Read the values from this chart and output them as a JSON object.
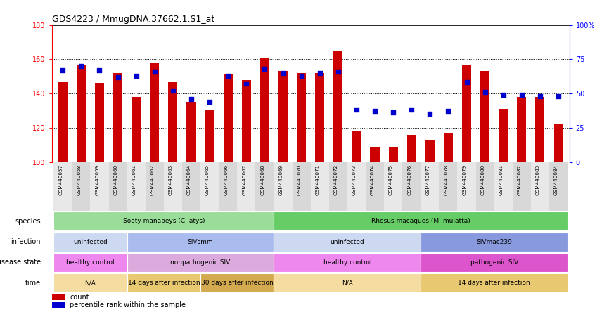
{
  "title": "GDS4223 / MmugDNA.37662.1.S1_at",
  "samples": [
    "GSM440057",
    "GSM440058",
    "GSM440059",
    "GSM440060",
    "GSM440061",
    "GSM440062",
    "GSM440063",
    "GSM440064",
    "GSM440065",
    "GSM440066",
    "GSM440067",
    "GSM440068",
    "GSM440069",
    "GSM440070",
    "GSM440071",
    "GSM440072",
    "GSM440073",
    "GSM440074",
    "GSM440075",
    "GSM440076",
    "GSM440077",
    "GSM440078",
    "GSM440079",
    "GSM440080",
    "GSM440081",
    "GSM440082",
    "GSM440083",
    "GSM440084"
  ],
  "counts": [
    147,
    157,
    146,
    152,
    138,
    158,
    147,
    135,
    130,
    151,
    148,
    161,
    153,
    152,
    152,
    165,
    118,
    109,
    109,
    116,
    113,
    117,
    157,
    153,
    131,
    138,
    138,
    122
  ],
  "percentiles": [
    67,
    70,
    67,
    62,
    63,
    66,
    52,
    46,
    44,
    63,
    57,
    68,
    65,
    63,
    65,
    66,
    38,
    37,
    36,
    38,
    35,
    37,
    58,
    51,
    49,
    49,
    48,
    48
  ],
  "bar_color": "#cc0000",
  "dot_color": "#0000cc",
  "ymin": 100,
  "ymax": 180,
  "yticks_left": [
    100,
    120,
    140,
    160,
    180
  ],
  "yticks_right": [
    0,
    25,
    50,
    75,
    100
  ],
  "grid_lines": [
    120,
    140,
    160
  ],
  "species_blocks": [
    {
      "label": "Sooty manabeys (C. atys)",
      "start": 0,
      "end": 12,
      "color": "#99dd99"
    },
    {
      "label": "Rhesus macaques (M. mulatta)",
      "start": 12,
      "end": 28,
      "color": "#66cc66"
    }
  ],
  "infection_blocks": [
    {
      "label": "uninfected",
      "start": 0,
      "end": 4,
      "color": "#ccd9f0"
    },
    {
      "label": "SIVsmm",
      "start": 4,
      "end": 12,
      "color": "#aabbee"
    },
    {
      "label": "uninfected",
      "start": 12,
      "end": 20,
      "color": "#ccd9f0"
    },
    {
      "label": "SIVmac239",
      "start": 20,
      "end": 28,
      "color": "#8899dd"
    }
  ],
  "disease_blocks": [
    {
      "label": "healthy control",
      "start": 0,
      "end": 4,
      "color": "#ee88ee"
    },
    {
      "label": "nonpathogenic SIV",
      "start": 4,
      "end": 12,
      "color": "#ddaadd"
    },
    {
      "label": "healthy control",
      "start": 12,
      "end": 20,
      "color": "#ee88ee"
    },
    {
      "label": "pathogenic SIV",
      "start": 20,
      "end": 28,
      "color": "#dd55cc"
    }
  ],
  "time_blocks": [
    {
      "label": "N/A",
      "start": 0,
      "end": 4,
      "color": "#f5dca0"
    },
    {
      "label": "14 days after infection",
      "start": 4,
      "end": 8,
      "color": "#e8c870"
    },
    {
      "label": "30 days after infection",
      "start": 8,
      "end": 12,
      "color": "#d4aa50"
    },
    {
      "label": "N/A",
      "start": 12,
      "end": 20,
      "color": "#f5dca0"
    },
    {
      "label": "14 days after infection",
      "start": 20,
      "end": 28,
      "color": "#e8c870"
    }
  ],
  "row_labels": [
    "species",
    "infection",
    "disease state",
    "time"
  ],
  "legend_items": [
    {
      "label": "count",
      "color": "#cc0000"
    },
    {
      "label": "percentile rank within the sample",
      "color": "#0000cc"
    }
  ]
}
